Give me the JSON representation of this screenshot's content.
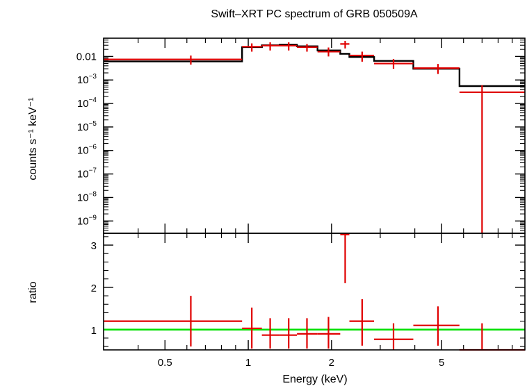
{
  "chart_data": [
    {
      "type": "line",
      "panel": "spectrum",
      "title": "Swift–XRT PC spectrum of GRB 050509A",
      "xlabel": "",
      "ylabel": "counts s⁻¹ keV⁻¹",
      "xscale": "log",
      "yscale": "log",
      "xlim": [
        0.3,
        10
      ],
      "ylim": [
        3e-10,
        0.06
      ],
      "y_ticks": [
        {
          "value": 0.01,
          "label": "0.01"
        },
        {
          "value": 0.001,
          "base": "10",
          "exp": "−3"
        },
        {
          "value": 0.0001,
          "base": "10",
          "exp": "−4"
        },
        {
          "value": 1e-05,
          "base": "10",
          "exp": "−5"
        },
        {
          "value": 1e-06,
          "base": "10",
          "exp": "−6"
        },
        {
          "value": 1e-07,
          "base": "10",
          "exp": "−7"
        },
        {
          "value": 1e-08,
          "base": "10",
          "exp": "−8"
        },
        {
          "value": 1e-09,
          "base": "10",
          "exp": "−9"
        }
      ],
      "series": [
        {
          "kind": "data",
          "color": "#e00000",
          "points": [
            {
              "xlo": 0.3,
              "xhi": 0.95,
              "x": 0.62,
              "y": 0.0075,
              "ylo": 0.0045,
              "yhi": 0.011
            },
            {
              "xlo": 0.95,
              "xhi": 1.12,
              "x": 1.03,
              "y": 0.026,
              "ylo": 0.016,
              "yhi": 0.036
            },
            {
              "xlo": 1.12,
              "xhi": 1.3,
              "x": 1.2,
              "y": 0.029,
              "ylo": 0.018,
              "yhi": 0.04
            },
            {
              "xlo": 1.3,
              "xhi": 1.5,
              "x": 1.4,
              "y": 0.029,
              "ylo": 0.018,
              "yhi": 0.04
            },
            {
              "xlo": 1.5,
              "xhi": 1.78,
              "x": 1.63,
              "y": 0.025,
              "ylo": 0.016,
              "yhi": 0.034
            },
            {
              "xlo": 1.78,
              "xhi": 2.15,
              "x": 1.95,
              "y": 0.016,
              "ylo": 0.01,
              "yhi": 0.024
            },
            {
              "xlo": 2.15,
              "xhi": 2.32,
              "x": 2.24,
              "y": 0.034,
              "ylo": 0.022,
              "yhi": 0.046
            },
            {
              "xlo": 2.32,
              "xhi": 2.85,
              "x": 2.58,
              "y": 0.011,
              "ylo": 0.006,
              "yhi": 0.016
            },
            {
              "xlo": 2.85,
              "xhi": 3.95,
              "x": 3.35,
              "y": 0.005,
              "ylo": 0.003,
              "yhi": 0.0078
            },
            {
              "xlo": 3.95,
              "xhi": 5.8,
              "x": 4.85,
              "y": 0.0032,
              "ylo": 0.0018,
              "yhi": 0.0048
            },
            {
              "xlo": 5.8,
              "xhi": 10,
              "x": 7.0,
              "y": 0.0003,
              "ylo": 3e-10,
              "yhi": 0.0006
            }
          ]
        },
        {
          "kind": "model",
          "color": "#000000",
          "steps": [
            {
              "xlo": 0.3,
              "xhi": 0.95,
              "y": 0.0062
            },
            {
              "xlo": 0.95,
              "xhi": 1.12,
              "y": 0.025
            },
            {
              "xlo": 1.12,
              "xhi": 1.3,
              "y": 0.03
            },
            {
              "xlo": 1.3,
              "xhi": 1.5,
              "y": 0.032
            },
            {
              "xlo": 1.5,
              "xhi": 1.78,
              "y": 0.027
            },
            {
              "xlo": 1.78,
              "xhi": 2.15,
              "y": 0.018
            },
            {
              "xlo": 2.15,
              "xhi": 2.32,
              "y": 0.013
            },
            {
              "xlo": 2.32,
              "xhi": 2.85,
              "y": 0.0095
            },
            {
              "xlo": 2.85,
              "xhi": 3.95,
              "y": 0.0065
            },
            {
              "xlo": 3.95,
              "xhi": 5.8,
              "y": 0.003
            },
            {
              "xlo": 5.8,
              "xhi": 10,
              "y": 0.00055
            }
          ]
        }
      ]
    },
    {
      "type": "line",
      "panel": "ratio",
      "xlabel": "Energy (keV)",
      "ylabel": "ratio",
      "xscale": "log",
      "yscale": "linear",
      "xlim": [
        0.3,
        10
      ],
      "ylim": [
        0.52,
        3.28
      ],
      "x_ticks": [
        {
          "value": 0.5,
          "label": "0.5"
        },
        {
          "value": 1,
          "label": "1"
        },
        {
          "value": 2,
          "label": "2"
        },
        {
          "value": 5,
          "label": "5"
        }
      ],
      "y_ticks": [
        {
          "value": 1,
          "label": "1"
        },
        {
          "value": 2,
          "label": "2"
        },
        {
          "value": 3,
          "label": "3"
        }
      ],
      "reference_line": {
        "y": 1,
        "color": "#00e000"
      },
      "series": [
        {
          "kind": "data",
          "color": "#e00000",
          "points": [
            {
              "xlo": 0.3,
              "xhi": 0.95,
              "x": 0.62,
              "y": 1.2,
              "ylo": 0.6,
              "yhi": 1.8
            },
            {
              "xlo": 0.95,
              "xhi": 1.12,
              "x": 1.03,
              "y": 1.03,
              "ylo": 0.55,
              "yhi": 1.52
            },
            {
              "xlo": 1.12,
              "xhi": 1.3,
              "x": 1.2,
              "y": 0.87,
              "ylo": 0.55,
              "yhi": 1.27
            },
            {
              "xlo": 1.3,
              "xhi": 1.5,
              "x": 1.4,
              "y": 0.87,
              "ylo": 0.55,
              "yhi": 1.27
            },
            {
              "xlo": 1.5,
              "xhi": 1.78,
              "x": 1.63,
              "y": 0.9,
              "ylo": 0.55,
              "yhi": 1.27
            },
            {
              "xlo": 1.78,
              "xhi": 2.15,
              "x": 1.95,
              "y": 0.9,
              "ylo": 0.55,
              "yhi": 1.3
            },
            {
              "xlo": 2.15,
              "xhi": 2.32,
              "x": 2.24,
              "y": 3.25,
              "ylo": 2.1,
              "yhi": 3.28
            },
            {
              "xlo": 2.32,
              "xhi": 2.85,
              "x": 2.58,
              "y": 1.2,
              "ylo": 0.62,
              "yhi": 1.72
            },
            {
              "xlo": 2.85,
              "xhi": 3.95,
              "x": 3.35,
              "y": 0.77,
              "ylo": 0.52,
              "yhi": 1.15
            },
            {
              "xlo": 3.95,
              "xhi": 5.8,
              "x": 4.85,
              "y": 1.1,
              "ylo": 0.62,
              "yhi": 1.55
            },
            {
              "xlo": 5.8,
              "xhi": 10,
              "x": 7.0,
              "y": 0.52,
              "ylo": 0.52,
              "yhi": 1.15
            }
          ]
        }
      ]
    }
  ]
}
